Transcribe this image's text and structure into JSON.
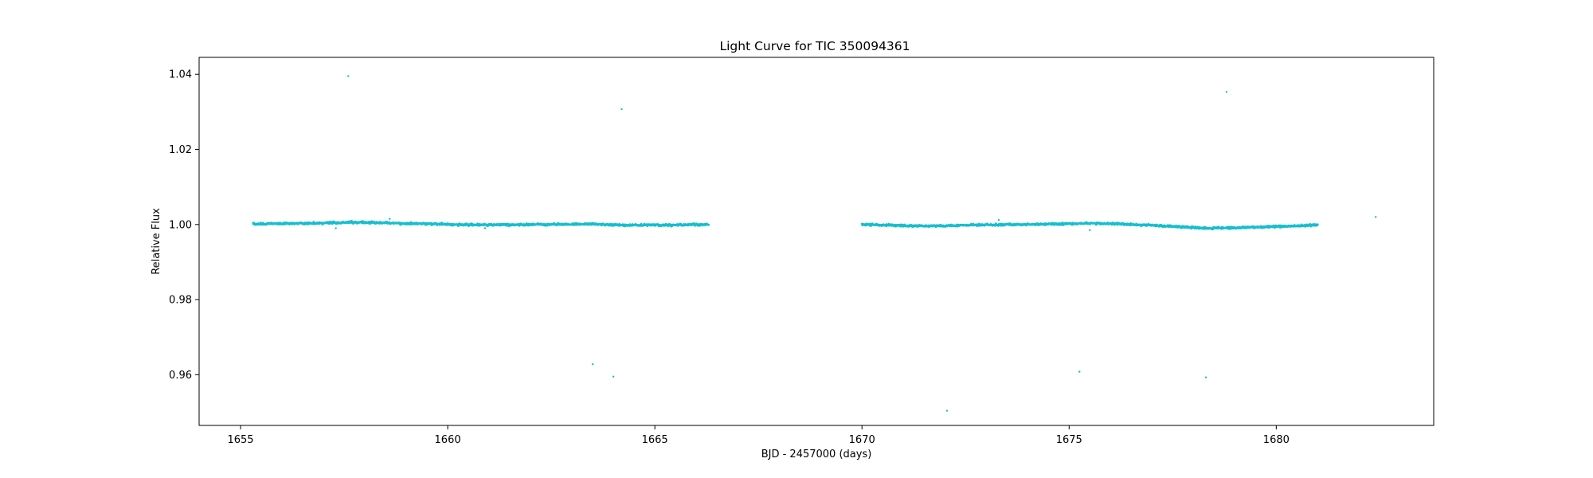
{
  "chart_data": {
    "type": "scatter",
    "title": "Light Curve for TIC 350094361",
    "xlabel": "BJD - 2457000 (days)",
    "ylabel": "Relative Flux",
    "xlim": [
      1654.0,
      1683.8
    ],
    "ylim": [
      0.9465,
      1.0445
    ],
    "xticks": [
      1655,
      1660,
      1665,
      1670,
      1675,
      1680
    ],
    "yticks": [
      0.96,
      0.98,
      1.0,
      1.02,
      1.04
    ],
    "xtick_labels": [
      "1655",
      "1660",
      "1665",
      "1670",
      "1675",
      "1680"
    ],
    "ytick_labels": [
      "0.96",
      "0.98",
      "1.00",
      "1.02",
      "1.04"
    ],
    "grid": false,
    "legend": "none",
    "color": "#17becf",
    "series": [
      {
        "name": "",
        "segments": [
          {
            "x_start": 1655.3,
            "x_end": 1666.3,
            "trend": [
              [
                1655.3,
                1.0001
              ],
              [
                1656.5,
                1.0003
              ],
              [
                1657.8,
                1.0006
              ],
              [
                1659.0,
                1.0003
              ],
              [
                1660.5,
                0.9999
              ],
              [
                1662.0,
                1.0
              ],
              [
                1663.5,
                1.0001
              ],
              [
                1664.3,
                0.9998
              ],
              [
                1665.5,
                0.9999
              ],
              [
                1666.3,
                1.0
              ]
            ]
          },
          {
            "x_start": 1670.0,
            "x_end": 1681.0,
            "trend": [
              [
                1670.0,
                1.0
              ],
              [
                1671.5,
                0.9996
              ],
              [
                1673.0,
                0.9999
              ],
              [
                1674.5,
                1.0001
              ],
              [
                1675.7,
                1.0003
              ],
              [
                1677.0,
                0.9998
              ],
              [
                1678.3,
                0.999
              ],
              [
                1679.5,
                0.9993
              ],
              [
                1680.5,
                0.9996
              ],
              [
                1681.0,
                0.9999
              ]
            ]
          }
        ],
        "outliers": [
          [
            1657.6,
            1.0395
          ],
          [
            1664.2,
            1.0307
          ],
          [
            1663.5,
            0.9628
          ],
          [
            1664.0,
            0.9595
          ],
          [
            1678.8,
            1.0353
          ],
          [
            1675.25,
            0.9608
          ],
          [
            1678.3,
            0.9593
          ],
          [
            1672.05,
            0.9504
          ],
          [
            1682.4,
            1.002
          ],
          [
            1657.3,
            0.999
          ],
          [
            1660.9,
            0.999
          ],
          [
            1675.5,
            0.9985
          ],
          [
            1658.6,
            1.0015
          ],
          [
            1673.3,
            1.0012
          ]
        ]
      }
    ]
  }
}
